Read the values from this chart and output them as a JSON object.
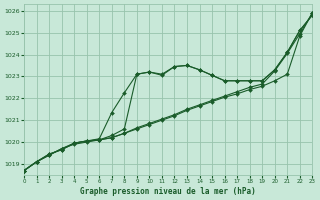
{
  "title": "Graphe pression niveau de la mer (hPa)",
  "bg_color": "#c8e8d8",
  "grid_color": "#98c4ac",
  "line_color": "#1a5c2a",
  "xlim": [
    0,
    23
  ],
  "ylim": [
    1018.5,
    1026.3
  ],
  "yticks": [
    1019,
    1020,
    1021,
    1022,
    1023,
    1024,
    1025,
    1026
  ],
  "xticks": [
    0,
    1,
    2,
    3,
    4,
    5,
    6,
    7,
    8,
    9,
    10,
    11,
    12,
    13,
    14,
    15,
    16,
    17,
    18,
    19,
    20,
    21,
    22,
    23
  ],
  "series": [
    {
      "x": [
        0,
        1,
        2,
        3,
        4,
        5,
        6,
        7,
        8,
        9,
        10,
        11,
        12,
        13,
        14,
        15,
        16,
        17,
        18,
        19,
        20,
        21,
        22,
        23
      ],
      "y": [
        1018.7,
        1019.1,
        1019.4,
        1019.7,
        1019.9,
        1020.0,
        1020.1,
        1020.3,
        1020.6,
        1023.1,
        1023.2,
        1023.1,
        1023.45,
        1023.5,
        1023.3,
        1023.05,
        1022.8,
        1022.8,
        1022.8,
        1022.8,
        1023.3,
        1024.1,
        1025.1,
        1025.8
      ]
    },
    {
      "x": [
        0,
        1,
        2,
        3,
        4,
        5,
        6,
        7,
        8,
        9,
        10,
        11,
        12,
        13,
        14,
        15,
        16,
        17,
        18,
        19,
        20,
        21,
        22,
        23
      ],
      "y": [
        1018.7,
        1019.1,
        1019.4,
        1019.7,
        1019.95,
        1020.05,
        1020.15,
        1021.35,
        1022.25,
        1023.1,
        1023.2,
        1023.05,
        1023.45,
        1023.5,
        1023.3,
        1023.05,
        1022.8,
        1022.8,
        1022.8,
        1022.8,
        1023.3,
        1024.1,
        1025.1,
        1025.8
      ]
    },
    {
      "x": [
        0,
        1,
        2,
        3,
        4,
        5,
        6,
        7,
        8,
        9,
        10,
        11,
        12,
        13,
        14,
        15,
        16,
        17,
        18,
        19,
        20,
        21,
        22,
        23
      ],
      "y": [
        1018.7,
        1019.1,
        1019.45,
        1019.65,
        1019.95,
        1020.05,
        1020.1,
        1020.2,
        1020.4,
        1020.6,
        1020.8,
        1021.0,
        1021.2,
        1021.45,
        1021.65,
        1021.85,
        1022.05,
        1022.2,
        1022.4,
        1022.55,
        1022.8,
        1023.1,
        1024.85,
        1025.9
      ]
    },
    {
      "x": [
        0,
        1,
        2,
        3,
        4,
        5,
        6,
        7,
        8,
        9,
        10,
        11,
        12,
        13,
        14,
        15,
        16,
        17,
        18,
        19,
        20,
        21,
        22,
        23
      ],
      "y": [
        1018.7,
        1019.1,
        1019.45,
        1019.65,
        1019.95,
        1020.05,
        1020.1,
        1020.2,
        1020.4,
        1020.65,
        1020.85,
        1021.05,
        1021.25,
        1021.5,
        1021.7,
        1021.9,
        1022.1,
        1022.3,
        1022.5,
        1022.65,
        1023.25,
        1024.05,
        1024.95,
        1025.9
      ]
    }
  ]
}
